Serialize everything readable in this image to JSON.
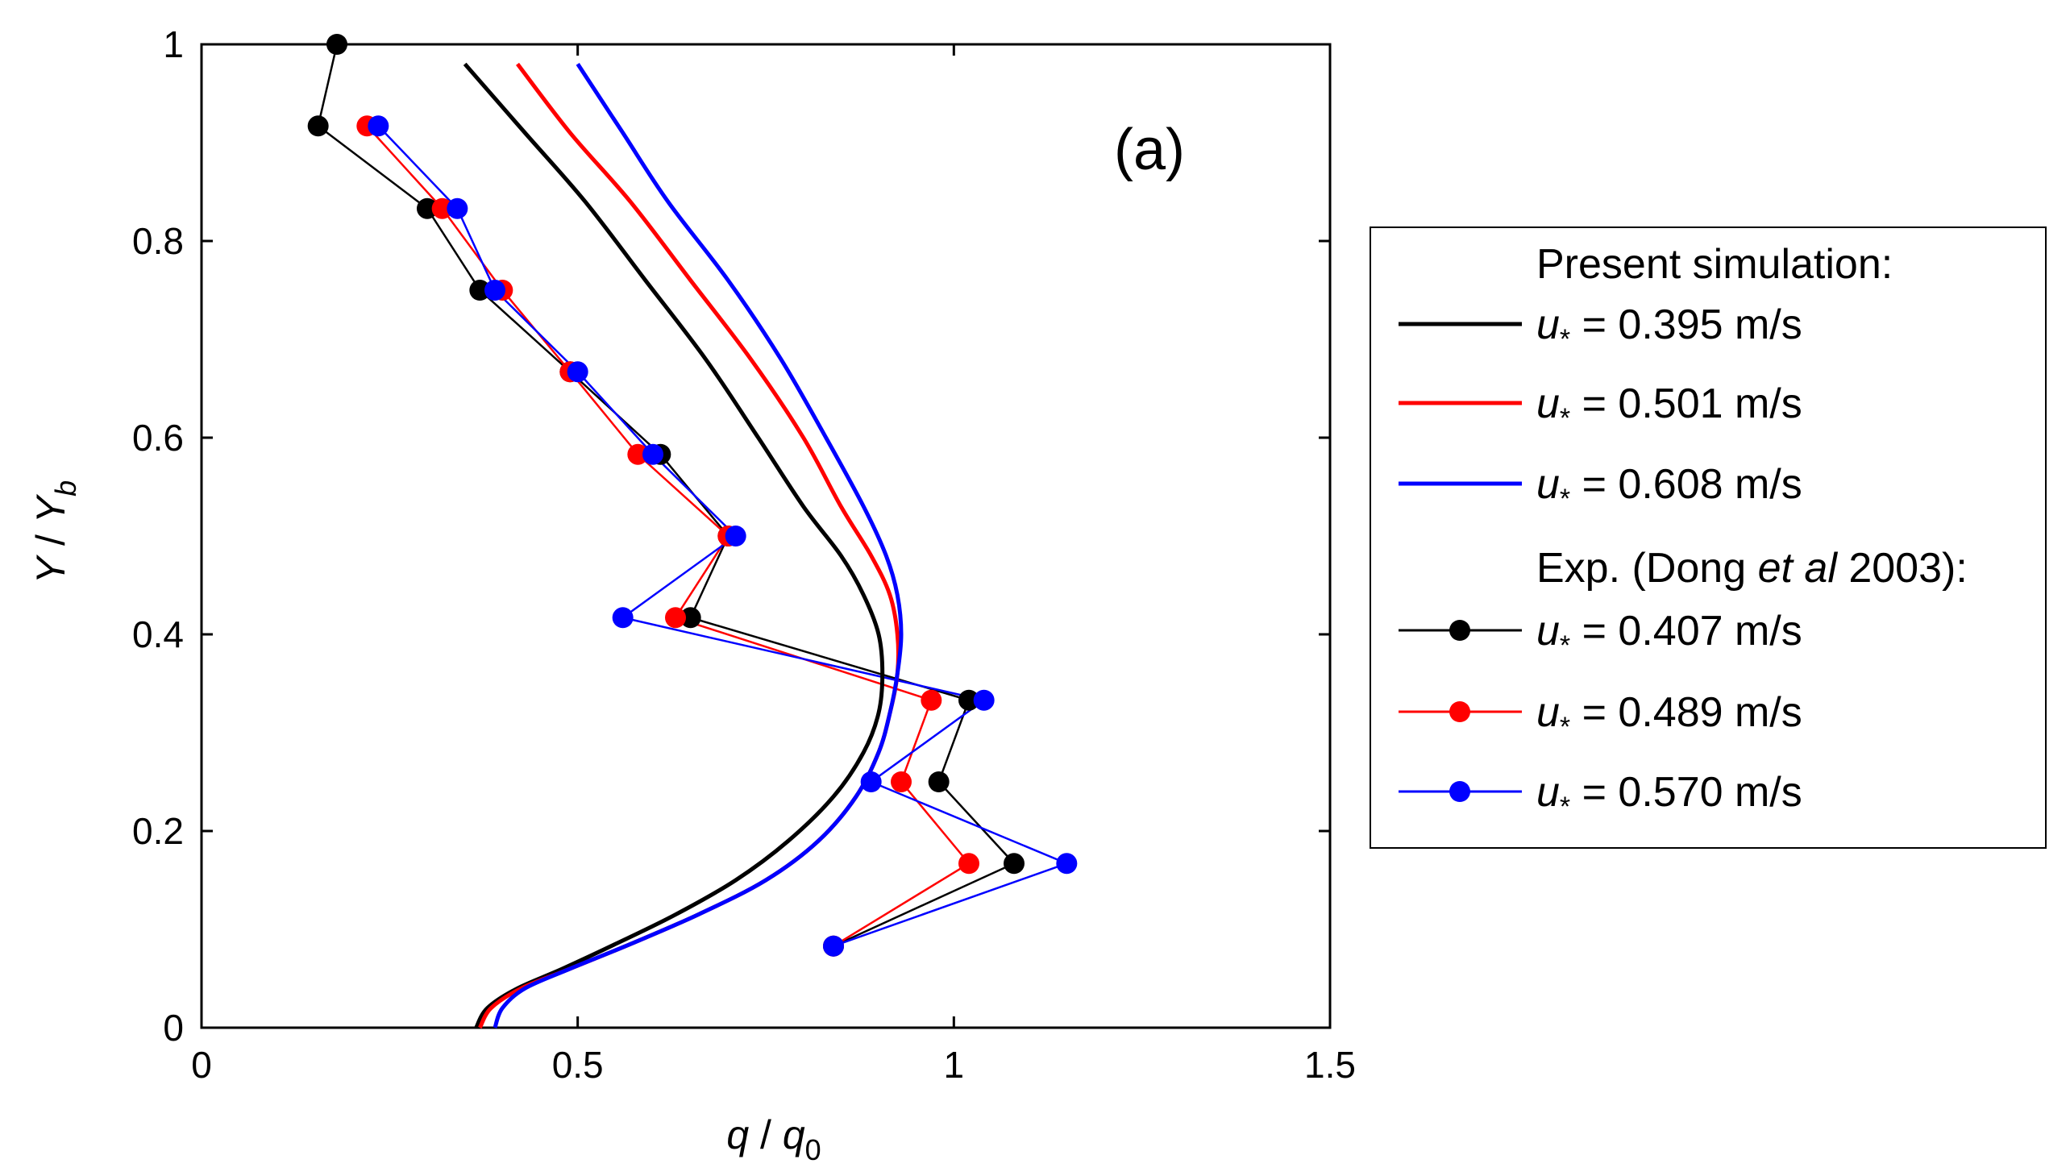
{
  "chart_data": {
    "type": "line",
    "panel_label": "(a)",
    "xlabel": {
      "main": "q",
      "sep": " / ",
      "sym": "q",
      "sub": "0"
    },
    "ylabel": {
      "main": "Y",
      "sep": " / ",
      "sym": "Y",
      "sub": "b"
    },
    "xlim": [
      0,
      1.5
    ],
    "ylim": [
      0,
      1
    ],
    "xticks": [
      0,
      0.5,
      1,
      1.5
    ],
    "xtick_labels": [
      "0",
      "0.5",
      "1",
      "1.5"
    ],
    "yticks": [
      0,
      0.2,
      0.4,
      0.6,
      0.8,
      1
    ],
    "ytick_labels": [
      "0",
      "0.2",
      "0.4",
      "0.6",
      "0.8",
      "1"
    ],
    "grid": false,
    "legend_position": "outside-right",
    "legend": {
      "heading_sim": "Present simulation:",
      "heading_exp_prefix": "Exp. (Dong ",
      "heading_exp_italic": "et al",
      "heading_exp_suffix": " 2003):"
    },
    "series": [
      {
        "name": "u* = 0.395 m/s",
        "label_symbol": "u",
        "label_sub": "*",
        "label_value": " = 0.395 m/s",
        "kind": "simulation",
        "color": "#000000",
        "x": [
          0.365,
          0.38,
          0.42,
          0.48,
          0.55,
          0.63,
          0.71,
          0.78,
          0.84,
          0.88,
          0.9,
          0.905,
          0.9,
          0.88,
          0.85,
          0.8,
          0.74,
          0.67,
          0.59,
          0.51,
          0.43,
          0.35
        ],
        "y": [
          0,
          0.02,
          0.04,
          0.06,
          0.085,
          0.115,
          0.15,
          0.19,
          0.235,
          0.28,
          0.32,
          0.36,
          0.4,
          0.44,
          0.48,
          0.53,
          0.6,
          0.68,
          0.76,
          0.84,
          0.91,
          0.98
        ]
      },
      {
        "name": "u* = 0.501 m/s",
        "label_symbol": "u",
        "label_sub": "*",
        "label_value": " = 0.501 m/s",
        "kind": "simulation",
        "color": "#ff0000",
        "x": [
          0.37,
          0.385,
          0.425,
          0.49,
          0.57,
          0.66,
          0.75,
          0.82,
          0.87,
          0.9,
          0.915,
          0.925,
          0.925,
          0.915,
          0.89,
          0.85,
          0.8,
          0.73,
          0.65,
          0.57,
          0.49,
          0.42
        ],
        "y": [
          0,
          0.02,
          0.04,
          0.06,
          0.085,
          0.115,
          0.15,
          0.19,
          0.235,
          0.28,
          0.32,
          0.36,
          0.4,
          0.44,
          0.48,
          0.53,
          0.6,
          0.68,
          0.76,
          0.84,
          0.91,
          0.98
        ]
      },
      {
        "name": "u* = 0.608 m/s",
        "label_symbol": "u",
        "label_sub": "*",
        "label_value": " = 0.608 m/s",
        "kind": "simulation",
        "color": "#0000ff",
        "x": [
          0.39,
          0.4,
          0.43,
          0.49,
          0.57,
          0.66,
          0.75,
          0.82,
          0.87,
          0.9,
          0.915,
          0.925,
          0.93,
          0.925,
          0.91,
          0.88,
          0.83,
          0.77,
          0.7,
          0.62,
          0.56,
          0.5
        ],
        "y": [
          0,
          0.02,
          0.04,
          0.06,
          0.085,
          0.115,
          0.15,
          0.19,
          0.235,
          0.28,
          0.32,
          0.36,
          0.4,
          0.44,
          0.48,
          0.53,
          0.6,
          0.68,
          0.76,
          0.84,
          0.91,
          0.98
        ]
      },
      {
        "name": "u* = 0.407 m/s",
        "label_symbol": "u",
        "label_sub": "*",
        "label_value": " = 0.407 m/s",
        "kind": "experiment",
        "color": "#000000",
        "x": [
          0.84,
          1.08,
          0.98,
          1.02,
          0.65,
          0.7,
          0.61,
          0.49,
          0.37,
          0.3,
          0.155,
          0.18
        ],
        "y": [
          0.083,
          0.167,
          0.25,
          0.333,
          0.417,
          0.5,
          0.583,
          0.667,
          0.75,
          0.833,
          0.917,
          1.0
        ]
      },
      {
        "name": "u* = 0.489 m/s",
        "label_symbol": "u",
        "label_sub": "*",
        "label_value": " = 0.489 m/s",
        "kind": "experiment",
        "color": "#ff0000",
        "x": [
          0.84,
          1.02,
          0.93,
          0.97,
          0.63,
          0.7,
          0.58,
          0.49,
          0.4,
          0.32,
          0.22
        ],
        "y": [
          0.083,
          0.167,
          0.25,
          0.333,
          0.417,
          0.5,
          0.583,
          0.667,
          0.75,
          0.833,
          0.917
        ]
      },
      {
        "name": "u* = 0.570 m/s",
        "label_symbol": "u",
        "label_sub": "*",
        "label_value": " = 0.570 m/s",
        "kind": "experiment",
        "color": "#0000ff",
        "x": [
          0.84,
          1.15,
          0.89,
          1.04,
          0.56,
          0.71,
          0.6,
          0.5,
          0.39,
          0.34,
          0.235
        ],
        "y": [
          0.083,
          0.167,
          0.25,
          0.333,
          0.417,
          0.5,
          0.583,
          0.667,
          0.75,
          0.833,
          0.917
        ]
      }
    ]
  }
}
